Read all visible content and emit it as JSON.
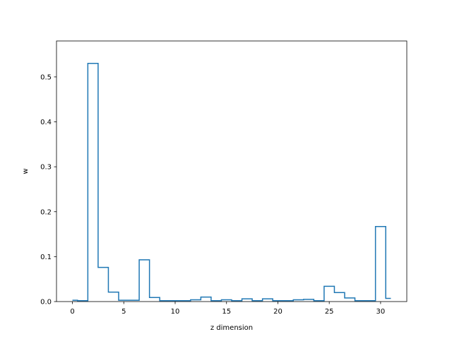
{
  "chart_data": {
    "type": "step",
    "title": "",
    "xlabel": "z dimension",
    "ylabel": "w",
    "xlim": [
      -1.55,
      32.55
    ],
    "ylim": [
      0,
      0.58
    ],
    "xticks": [
      0,
      5,
      10,
      15,
      20,
      25,
      30
    ],
    "yticks": [
      0.0,
      0.1,
      0.2,
      0.3,
      0.4,
      0.5
    ],
    "xtick_labels": [
      "0",
      "5",
      "10",
      "15",
      "20",
      "25",
      "30"
    ],
    "ytick_labels": [
      "0.0",
      "0.1",
      "0.2",
      "0.3",
      "0.4",
      "0.5"
    ],
    "step_where": "mid",
    "grid": false,
    "series": [
      {
        "color": "#1f77b4",
        "x": [
          0,
          1,
          2,
          3,
          4,
          5,
          6,
          7,
          8,
          9,
          10,
          11,
          12,
          13,
          14,
          15,
          16,
          17,
          18,
          19,
          20,
          21,
          22,
          23,
          24,
          25,
          26,
          27,
          28,
          29,
          30,
          31
        ],
        "values": [
          0.003,
          0.002,
          0.53,
          0.076,
          0.021,
          0.003,
          0.003,
          0.093,
          0.009,
          0.002,
          0.002,
          0.002,
          0.004,
          0.01,
          0.002,
          0.004,
          0.002,
          0.006,
          0.002,
          0.006,
          0.002,
          0.002,
          0.004,
          0.005,
          0.002,
          0.034,
          0.02,
          0.008,
          0.002,
          0.002,
          0.167,
          0.007
        ]
      }
    ]
  }
}
